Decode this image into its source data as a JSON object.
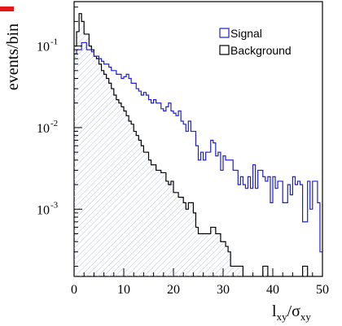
{
  "chart_data": {
    "type": "line",
    "title": "",
    "ylabel": "events/bin",
    "xlabel": {
      "main": "l",
      "main_sub": "xy",
      "sep": "/σ",
      "den_sub": "xy"
    },
    "scale": {
      "y": "log"
    },
    "xlim": [
      0,
      50
    ],
    "ylim": [
      0.00015,
      0.35
    ],
    "xticks": [
      {
        "value": 0,
        "label": "0"
      },
      {
        "value": 10,
        "label": "10"
      },
      {
        "value": 20,
        "label": "20"
      },
      {
        "value": 30,
        "label": "30"
      },
      {
        "value": 40,
        "label": "40"
      },
      {
        "value": 50,
        "label": "50"
      }
    ],
    "yticks": [
      {
        "value": 0.1,
        "base": "10",
        "exp": "-1"
      },
      {
        "value": 0.01,
        "base": "10",
        "exp": "-2"
      },
      {
        "value": 0.001,
        "base": "10",
        "exp": "-3"
      }
    ],
    "grid": false,
    "legend_position": "top-right",
    "bin_width": 0.5,
    "series": [
      {
        "name": "Signal",
        "color": "#1f1fd0",
        "fill": "none",
        "x": [
          0,
          0.5,
          1,
          1.5,
          2,
          2.5,
          3,
          3.5,
          4,
          4.5,
          5,
          5.5,
          6,
          6.5,
          7,
          7.5,
          8,
          8.5,
          9,
          9.5,
          10,
          10.5,
          11,
          11.5,
          12,
          12.5,
          13,
          13.5,
          14,
          14.5,
          15,
          15.5,
          16,
          16.5,
          17,
          17.5,
          18,
          18.5,
          19,
          19.5,
          20,
          20.5,
          21,
          21.5,
          22,
          22.5,
          23,
          23.5,
          24,
          24.5,
          25,
          25.5,
          26,
          26.5,
          27,
          27.5,
          28,
          28.5,
          29,
          29.5,
          30,
          30.5,
          31,
          31.5,
          32,
          32.5,
          33,
          33.5,
          34,
          34.5,
          35,
          35.5,
          36,
          36.5,
          37,
          37.5,
          38,
          38.5,
          39,
          39.5,
          40,
          40.5,
          41,
          41.5,
          42,
          42.5,
          43,
          43.5,
          44,
          44.5,
          45,
          45.5,
          46,
          46.5,
          47,
          47.5,
          48,
          48.5,
          49,
          49.5
        ],
        "values": [
          0.08,
          0.09,
          0.09,
          0.11,
          0.11,
          0.09,
          0.09,
          0.085,
          0.075,
          0.075,
          0.07,
          0.065,
          0.06,
          0.06,
          0.055,
          0.05,
          0.05,
          0.045,
          0.045,
          0.04,
          0.042,
          0.045,
          0.04,
          0.035,
          0.035,
          0.03,
          0.028,
          0.025,
          0.027,
          0.025,
          0.022,
          0.02,
          0.022,
          0.02,
          0.02,
          0.017,
          0.016,
          0.018,
          0.02,
          0.016,
          0.015,
          0.014,
          0.016,
          0.012,
          0.011,
          0.009,
          0.012,
          0.009,
          0.009,
          0.006,
          0.004,
          0.005,
          0.004,
          0.005,
          0.005,
          0.007,
          0.0065,
          0.0045,
          0.005,
          0.003,
          0.0045,
          0.004,
          0.004,
          0.004,
          0.003,
          0.003,
          0.002,
          0.0025,
          0.002,
          0.0018,
          0.0025,
          0.0018,
          0.0035,
          0.0018,
          0.003,
          0.003,
          0.0025,
          0.0022,
          0.0025,
          0.0012,
          0.0025,
          0.0018,
          0.0022,
          0.0022,
          0.0012,
          0.0012,
          0.002,
          0.0015,
          0.0025,
          0.002,
          0.0022,
          0.002,
          0.0007,
          0.0007,
          0.0022,
          0.001,
          0.0022,
          0.0022,
          0.0012,
          0.0003
        ]
      },
      {
        "name": "Background",
        "color": "#000000",
        "fill": "hatched",
        "x": [
          0,
          0.5,
          1,
          1.5,
          2,
          2.5,
          3,
          3.5,
          4,
          4.5,
          5,
          5.5,
          6,
          6.5,
          7,
          7.5,
          8,
          8.5,
          9,
          9.5,
          10,
          10.5,
          11,
          11.5,
          12,
          12.5,
          13,
          13.5,
          14,
          14.5,
          15,
          15.5,
          16,
          16.5,
          17,
          17.5,
          18,
          18.5,
          19,
          19.5,
          20,
          20.5,
          21,
          21.5,
          22,
          22.5,
          23,
          23.5,
          24,
          24.5,
          25,
          25.5,
          26,
          26.5,
          27,
          27.5,
          28,
          28.5,
          29,
          29.5,
          30,
          30.5,
          31,
          31.5,
          32,
          32.5,
          33,
          33.5,
          34,
          34.5,
          35,
          35.5,
          36,
          36.5,
          37,
          37.5,
          38,
          38.5,
          39,
          39.5,
          40,
          40.5,
          41,
          41.5,
          42,
          42.5,
          43,
          43.5,
          44,
          44.5,
          45,
          45.5,
          46,
          46.5,
          47,
          47.5,
          48,
          48.5,
          49,
          49.5
        ],
        "values": [
          0.1,
          0.15,
          0.25,
          0.2,
          0.14,
          0.14,
          0.1,
          0.09,
          0.075,
          0.07,
          0.06,
          0.05,
          0.045,
          0.04,
          0.035,
          0.03,
          0.025,
          0.022,
          0.02,
          0.018,
          0.016,
          0.014,
          0.012,
          0.011,
          0.009,
          0.008,
          0.007,
          0.006,
          0.005,
          0.005,
          0.004,
          0.0035,
          0.0035,
          0.003,
          0.003,
          0.0028,
          0.0028,
          0.0022,
          0.002,
          0.0022,
          0.0016,
          0.0016,
          0.0014,
          0.0014,
          0.0012,
          0.001,
          0.0012,
          0.0012,
          0.0009,
          0.0006,
          0.0005,
          0.0005,
          0.0005,
          0.0005,
          0.0005,
          0.0006,
          0.0006,
          0.0005,
          0.0005,
          0.0004,
          0.0004,
          0.00035,
          0.0003,
          0.0002,
          0.0002,
          0.0002,
          0.0002,
          0.0002,
          0.0001,
          0.0001,
          0.0001,
          0.0001,
          0.0001,
          0.0001,
          0.0001,
          0.0001,
          0.0002,
          0.0002,
          0.0001,
          0.0001,
          0.0001,
          0.0001,
          0.0001,
          0.0001,
          0.0001,
          0.0001,
          0.0001,
          0.0001,
          0.0001,
          0.0001,
          0.0001,
          0.0001,
          0.0002,
          0.0002,
          0.0001,
          0.0001,
          0.0001,
          0.0001,
          0.0001,
          0.0001
        ]
      }
    ]
  },
  "colors": {
    "signal": "#1f1fd0",
    "background": "#000000",
    "hatch": "#b8c4dc",
    "corner_mark": "#e31818"
  }
}
